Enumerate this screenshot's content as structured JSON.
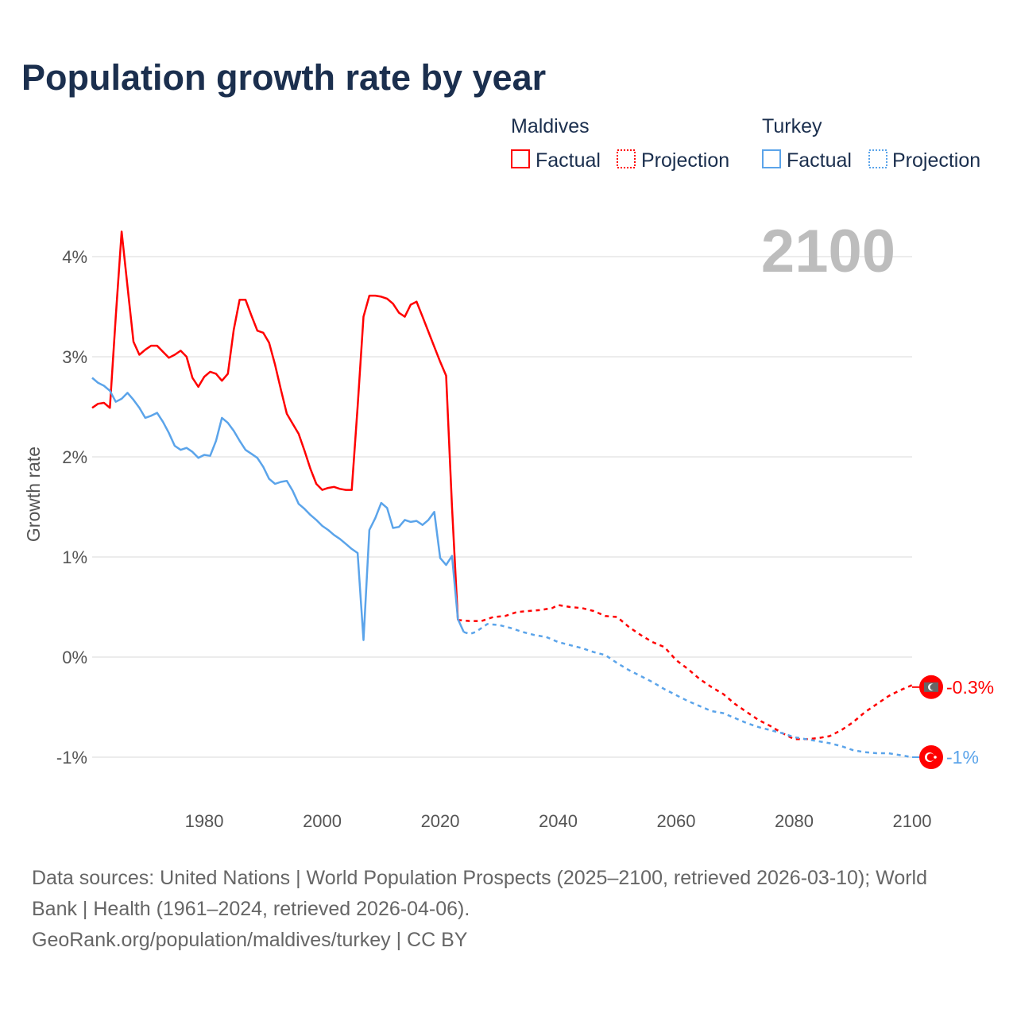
{
  "chart_data": {
    "type": "line",
    "title": "Population growth rate by year",
    "xlabel": "",
    "ylabel": "Growth rate",
    "xlim": [
      1961,
      2100
    ],
    "ylim": [
      -1.4,
      4.5
    ],
    "x_ticks": [
      1980,
      2000,
      2020,
      2040,
      2060,
      2080,
      2100
    ],
    "x_tick_labels": [
      "1980",
      "2000",
      "2020",
      "2040",
      "2060",
      "2080",
      "2100"
    ],
    "y_ticks": [
      4,
      3,
      2,
      1,
      0,
      -1
    ],
    "y_tick_labels": [
      "4%",
      "3%",
      "2%",
      "1%",
      "0%",
      "-1%"
    ],
    "grid": true,
    "legend_position": "top-right",
    "year_display": "2100",
    "legend": {
      "groups": [
        {
          "name": "Maldives",
          "factual_label": "Factual",
          "projection_label": "Projection"
        },
        {
          "name": "Turkey",
          "factual_label": "Factual",
          "projection_label": "Projection"
        }
      ]
    },
    "series": [
      {
        "name": "Maldives Factual",
        "country": "Maldives",
        "kind": "factual",
        "color": "#ff0000",
        "x": [
          1961,
          1962,
          1963,
          1964,
          1965,
          1966,
          1967,
          1968,
          1969,
          1970,
          1971,
          1972,
          1973,
          1974,
          1975,
          1976,
          1977,
          1978,
          1979,
          1980,
          1981,
          1982,
          1983,
          1984,
          1985,
          1986,
          1987,
          1988,
          1989,
          1990,
          1991,
          1992,
          1993,
          1994,
          1995,
          1996,
          1997,
          1998,
          1999,
          2000,
          2001,
          2002,
          2003,
          2004,
          2005,
          2006,
          2007,
          2008,
          2009,
          2010,
          2011,
          2012,
          2013,
          2014,
          2015,
          2016,
          2017,
          2018,
          2019,
          2020,
          2021,
          2022,
          2023
        ],
        "y": [
          2.49,
          2.53,
          2.54,
          2.49,
          3.4,
          4.25,
          3.7,
          3.15,
          3.02,
          3.07,
          3.11,
          3.11,
          3.05,
          2.99,
          3.02,
          3.06,
          3.0,
          2.79,
          2.7,
          2.8,
          2.85,
          2.83,
          2.76,
          2.83,
          3.27,
          3.57,
          3.57,
          3.41,
          3.26,
          3.24,
          3.14,
          2.92,
          2.67,
          2.43,
          2.33,
          2.23,
          2.06,
          1.88,
          1.73,
          1.67,
          1.69,
          1.7,
          1.68,
          1.67,
          1.67,
          2.5,
          3.4,
          3.61,
          3.61,
          3.6,
          3.58,
          3.53,
          3.44,
          3.4,
          3.52,
          3.55,
          3.4,
          3.25,
          3.1,
          2.95,
          2.81,
          1.5,
          0.37
        ]
      },
      {
        "name": "Maldives Projection",
        "country": "Maldives",
        "kind": "projection",
        "color": "#ff0000",
        "x": [
          2023,
          2025,
          2027,
          2029,
          2031,
          2033,
          2035,
          2037,
          2039,
          2040,
          2042,
          2044,
          2046,
          2048,
          2050,
          2052,
          2054,
          2056,
          2058,
          2060,
          2062,
          2064,
          2066,
          2068,
          2070,
          2072,
          2074,
          2076,
          2078,
          2080,
          2082,
          2084,
          2086,
          2088,
          2090,
          2092,
          2094,
          2096,
          2098,
          2100
        ],
        "y": [
          0.37,
          0.36,
          0.36,
          0.4,
          0.41,
          0.45,
          0.46,
          0.47,
          0.49,
          0.52,
          0.5,
          0.49,
          0.46,
          0.41,
          0.4,
          0.3,
          0.22,
          0.15,
          0.1,
          -0.03,
          -0.12,
          -0.22,
          -0.3,
          -0.37,
          -0.47,
          -0.55,
          -0.63,
          -0.69,
          -0.76,
          -0.82,
          -0.82,
          -0.81,
          -0.79,
          -0.73,
          -0.65,
          -0.55,
          -0.47,
          -0.39,
          -0.33,
          -0.28
        ]
      },
      {
        "name": "Turkey Factual",
        "country": "Turkey",
        "kind": "factual",
        "color": "#5ba4ea",
        "x": [
          1961,
          1962,
          1963,
          1964,
          1965,
          1966,
          1967,
          1968,
          1969,
          1970,
          1971,
          1972,
          1973,
          1974,
          1975,
          1976,
          1977,
          1978,
          1979,
          1980,
          1981,
          1982,
          1983,
          1984,
          1985,
          1986,
          1987,
          1988,
          1989,
          1990,
          1991,
          1992,
          1993,
          1994,
          1995,
          1996,
          1997,
          1998,
          1999,
          2000,
          2001,
          2002,
          2003,
          2004,
          2005,
          2006,
          2007,
          2008,
          2009,
          2010,
          2011,
          2012,
          2013,
          2014,
          2015,
          2016,
          2017,
          2018,
          2019,
          2020,
          2021,
          2022,
          2023,
          2024
        ],
        "y": [
          2.79,
          2.74,
          2.71,
          2.66,
          2.55,
          2.58,
          2.64,
          2.57,
          2.49,
          2.39,
          2.41,
          2.44,
          2.35,
          2.24,
          2.11,
          2.07,
          2.09,
          2.05,
          1.99,
          2.02,
          2.01,
          2.16,
          2.39,
          2.34,
          2.26,
          2.16,
          2.07,
          2.03,
          1.99,
          1.9,
          1.78,
          1.73,
          1.75,
          1.76,
          1.66,
          1.53,
          1.48,
          1.42,
          1.37,
          1.31,
          1.27,
          1.22,
          1.18,
          1.13,
          1.08,
          1.04,
          0.17,
          1.27,
          1.39,
          1.54,
          1.49,
          1.29,
          1.3,
          1.37,
          1.35,
          1.36,
          1.32,
          1.37,
          1.45,
          0.99,
          0.92,
          1.01,
          0.38,
          0.25
        ]
      },
      {
        "name": "Turkey Projection",
        "country": "Turkey",
        "kind": "projection",
        "color": "#5ba4ea",
        "x": [
          2024,
          2025,
          2026,
          2028,
          2030,
          2032,
          2034,
          2036,
          2038,
          2040,
          2042,
          2044,
          2046,
          2048,
          2050,
          2052,
          2054,
          2056,
          2058,
          2060,
          2062,
          2064,
          2066,
          2068,
          2070,
          2072,
          2074,
          2076,
          2078,
          2080,
          2082,
          2084,
          2086,
          2088,
          2090,
          2092,
          2094,
          2096,
          2098,
          2100
        ],
        "y": [
          0.25,
          0.23,
          0.25,
          0.33,
          0.32,
          0.29,
          0.25,
          0.22,
          0.2,
          0.15,
          0.12,
          0.09,
          0.05,
          0.02,
          -0.06,
          -0.13,
          -0.19,
          -0.25,
          -0.32,
          -0.38,
          -0.44,
          -0.49,
          -0.54,
          -0.56,
          -0.61,
          -0.66,
          -0.7,
          -0.73,
          -0.76,
          -0.8,
          -0.82,
          -0.84,
          -0.86,
          -0.89,
          -0.93,
          -0.95,
          -0.96,
          -0.96,
          -0.98,
          -1.0
        ]
      }
    ],
    "end_labels": [
      {
        "country": "Maldives",
        "text": "-0.3%",
        "value": -0.3,
        "color": "#ff0000",
        "icon": "maldives-flag-icon"
      },
      {
        "country": "Turkey",
        "text": "-1%",
        "value": -1.0,
        "color": "#5ba4ea",
        "icon": "turkey-flag-icon"
      }
    ]
  },
  "footer": {
    "line1": "Data sources: United Nations | World Population Prospects (2025–2100, retrieved 2026-03-10); World",
    "line2": "Bank | Health (1961–2024, retrieved 2026-04-06).",
    "line3": "GeoRank.org/population/maldives/turkey | CC BY"
  }
}
